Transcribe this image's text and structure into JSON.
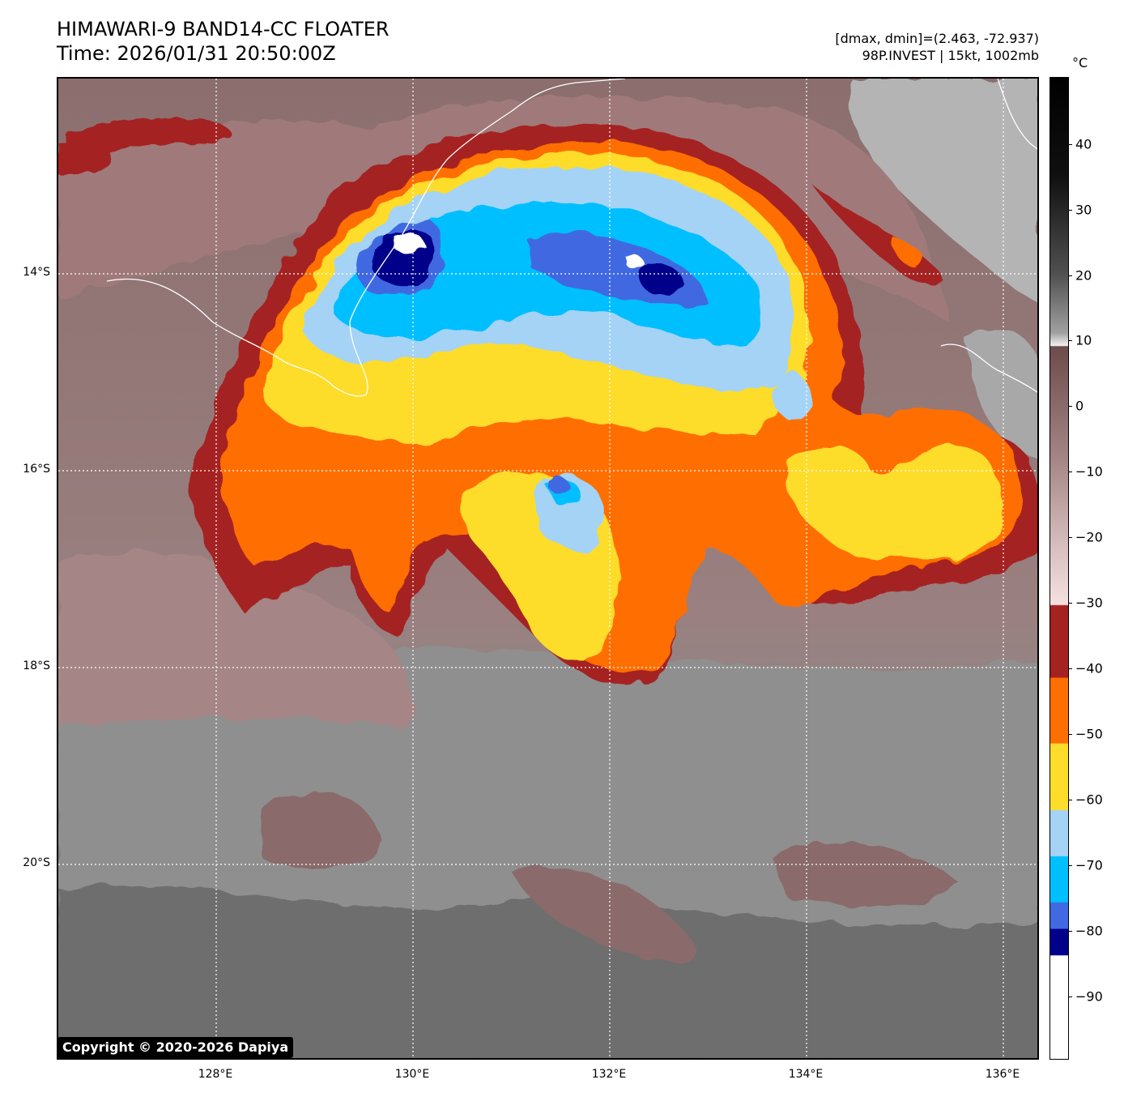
{
  "header": {
    "title_line1": "HIMAWARI-9 BAND14-CC FLOATER",
    "title_line2": "Time: 2026/01/31 20:50:00Z",
    "info_line1": "[dmax, dmin]=(2.463, -72.937)",
    "info_line2": "98P.INVEST | 15kt, 1002mb"
  },
  "map": {
    "lat_labels": [
      "14°S",
      "16°S",
      "18°S",
      "20°S"
    ],
    "lon_labels": [
      "128°E",
      "130°E",
      "132°E",
      "134°E",
      "136°E"
    ],
    "grid_style": "dotted white",
    "coastline_color": "#ffffff",
    "copyright": "Copyright © 2020-2026 Dapiya"
  },
  "colorbar": {
    "unit": "°C",
    "ticks": [
      "40",
      "30",
      "20",
      "10",
      "0",
      "−10",
      "−20",
      "−30",
      "−40",
      "−50",
      "−60",
      "−70",
      "−80",
      "−90"
    ],
    "colors": {
      "dark_red": "#a52222",
      "orange": "#ff6e00",
      "yellow": "#fddc2c",
      "light_blue": "#a5d3f5",
      "cyan": "#00bfff",
      "blue": "#4169e1",
      "navy": "#00008b",
      "white": "#ffffff"
    }
  }
}
